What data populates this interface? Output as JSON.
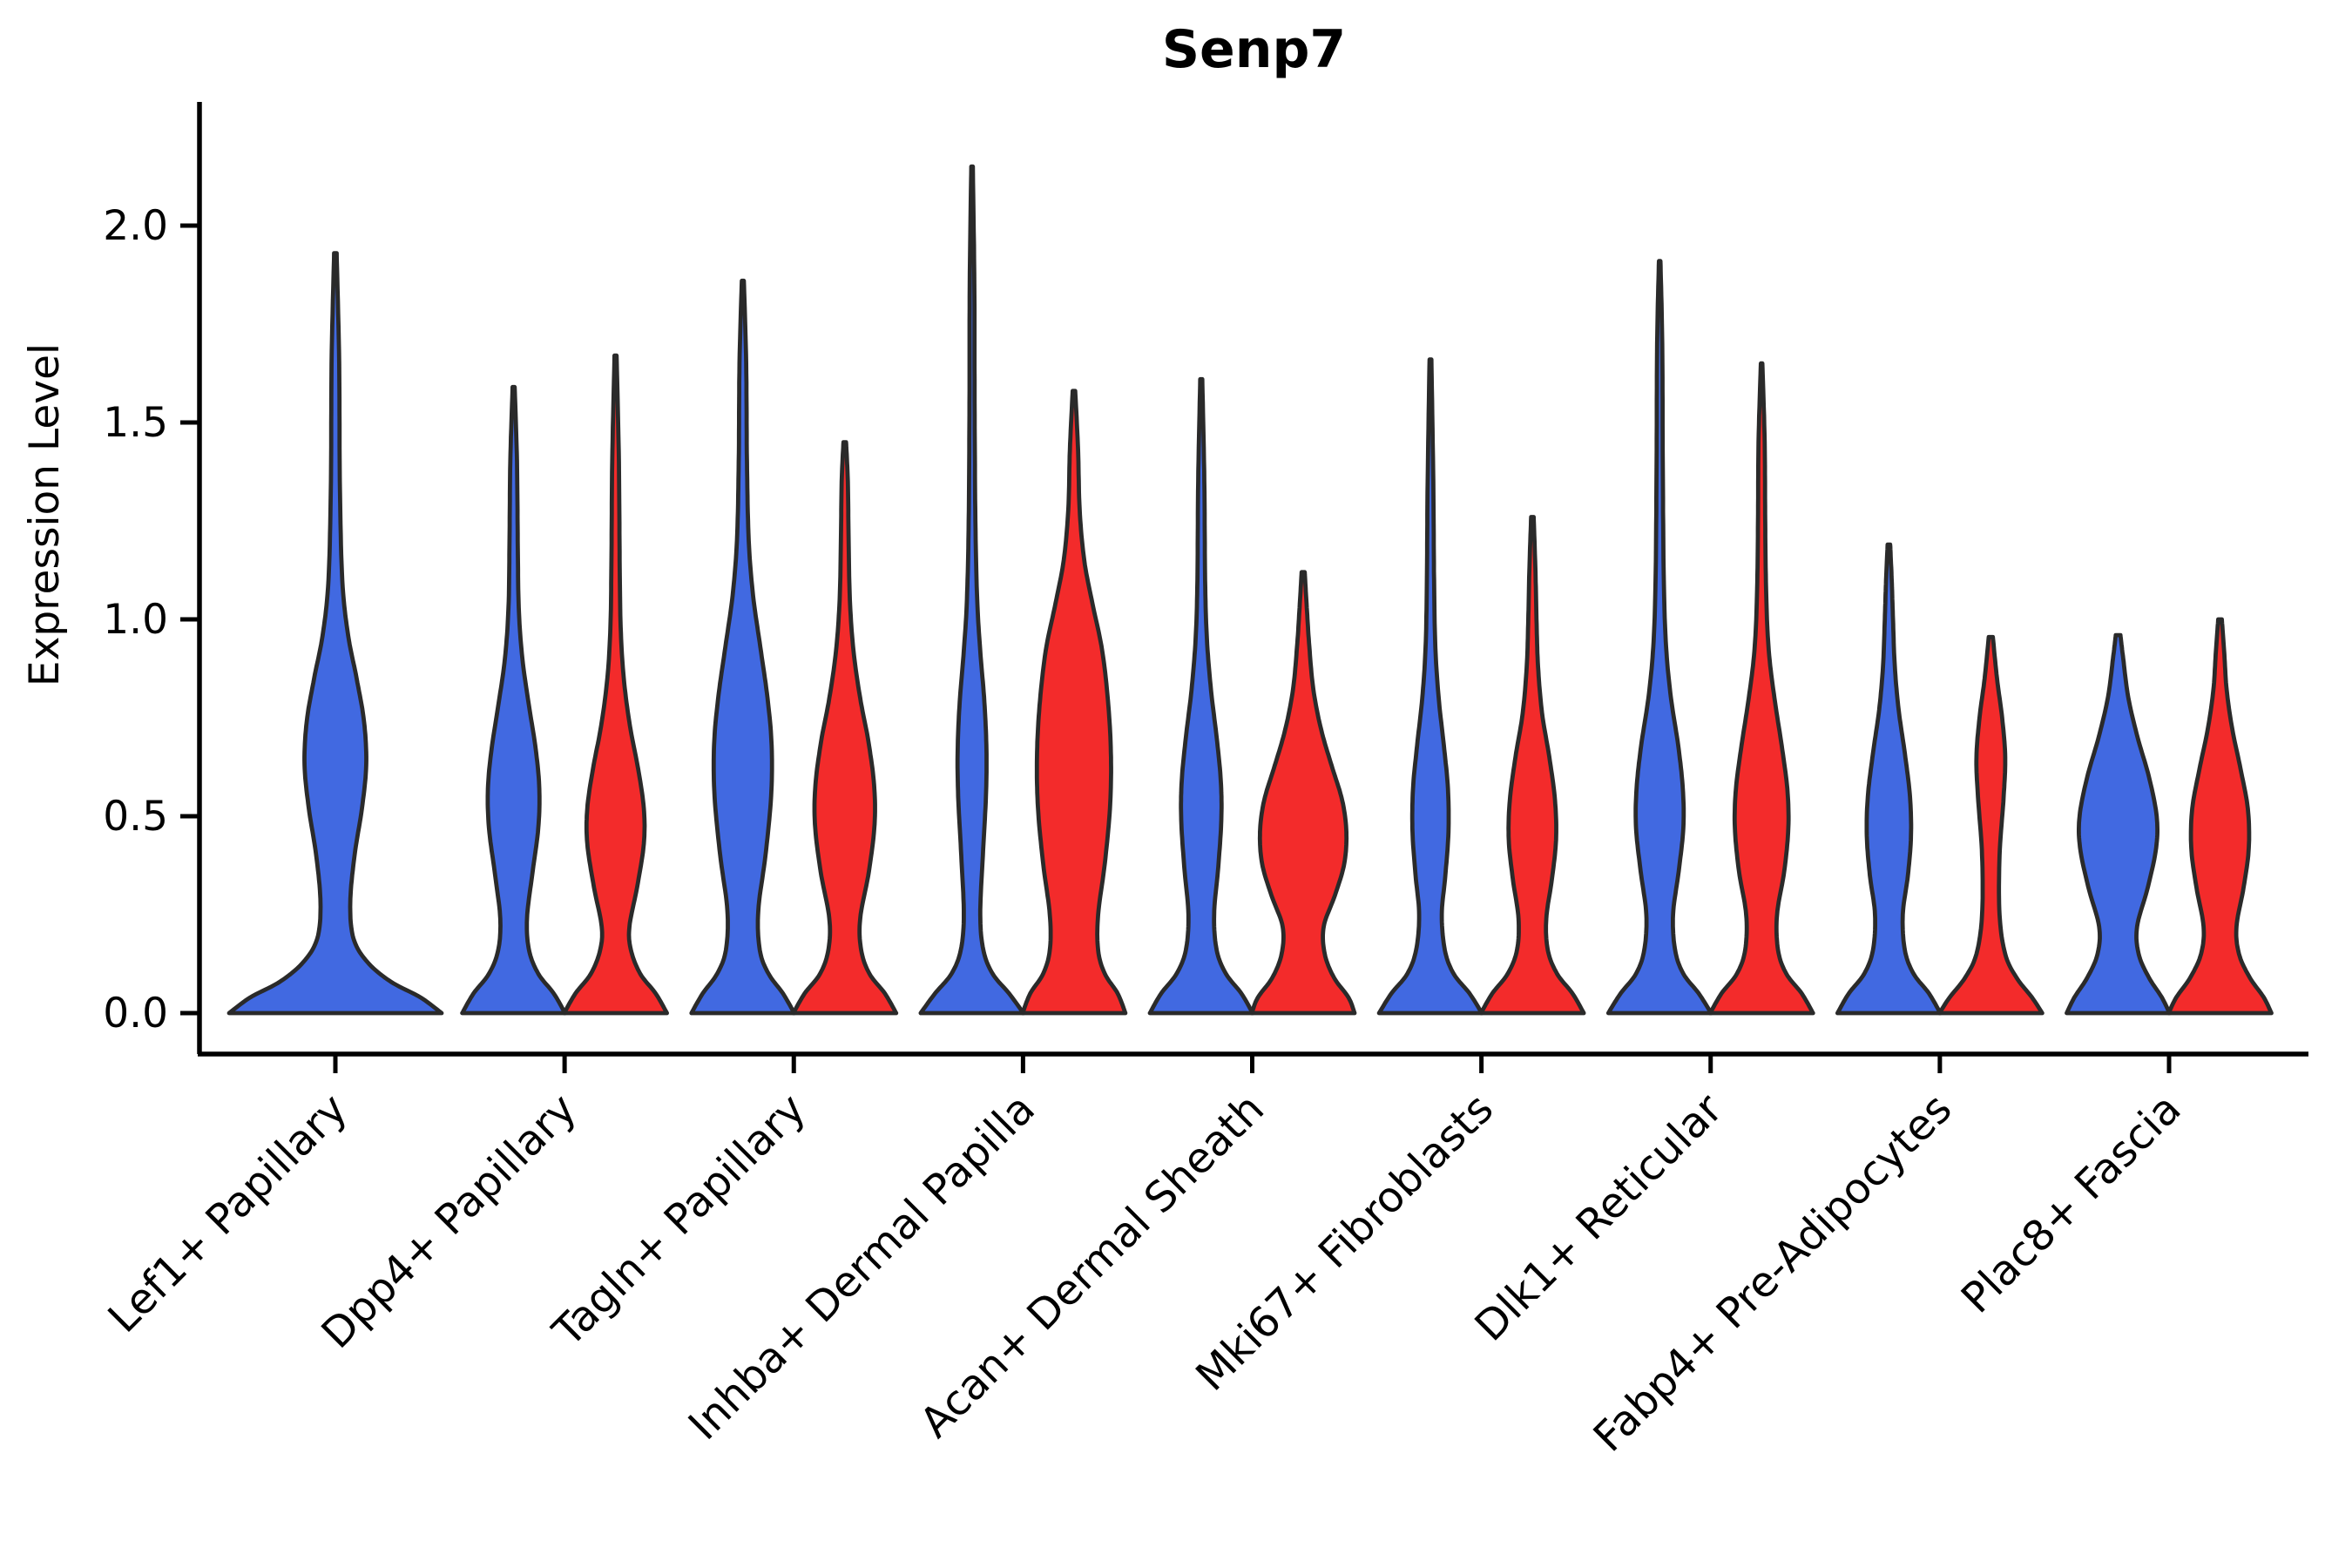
{
  "chart_data": {
    "type": "violin",
    "title": "Senp7",
    "ylabel": "Expression Level",
    "xlabel": "",
    "grid": false,
    "legend": "none",
    "ytick_labels": [
      "0.0",
      "0.5",
      "1.0",
      "1.5",
      "2.0"
    ],
    "ytick_values": [
      0.0,
      0.5,
      1.0,
      1.5,
      2.0
    ],
    "ylim": [
      -0.1,
      2.31
    ],
    "categories": [
      "Lef1+ Papillary",
      "Dpp4+ Papillary",
      "Tagln+ Papillary",
      "Inhba+ Dermal Papilla",
      "Acan+ Dermal Sheath",
      "Mki67+ Fibroblasts",
      "Dlk1+ Reticular",
      "Fabp4+ Pre-Adipocytes",
      "Plac8+ Fascia"
    ],
    "series_colors": {
      "blue": "#4169E1",
      "red": "#F32B2B"
    },
    "outline_color": "#2A2A2A",
    "violins": [
      {
        "category": "Lef1+ Papillary",
        "group": "blue",
        "placement": "center",
        "max": 1.93,
        "profile": [
          [
            0,
            1.0
          ],
          [
            0.04,
            0.8
          ],
          [
            0.08,
            0.52
          ],
          [
            0.13,
            0.3
          ],
          [
            0.19,
            0.17
          ],
          [
            0.28,
            0.14
          ],
          [
            0.4,
            0.18
          ],
          [
            0.52,
            0.25
          ],
          [
            0.63,
            0.29
          ],
          [
            0.74,
            0.27
          ],
          [
            0.85,
            0.2
          ],
          [
            0.96,
            0.12
          ],
          [
            1.1,
            0.065
          ],
          [
            1.35,
            0.042
          ],
          [
            1.65,
            0.036
          ],
          [
            1.93,
            0.012
          ]
        ]
      },
      {
        "category": "Dpp4+ Papillary",
        "group": "blue",
        "placement": "left",
        "max": 1.59,
        "profile": [
          [
            0,
            1.0
          ],
          [
            0.05,
            0.78
          ],
          [
            0.1,
            0.48
          ],
          [
            0.16,
            0.3
          ],
          [
            0.24,
            0.26
          ],
          [
            0.35,
            0.36
          ],
          [
            0.47,
            0.48
          ],
          [
            0.57,
            0.5
          ],
          [
            0.67,
            0.43
          ],
          [
            0.78,
            0.3
          ],
          [
            0.9,
            0.17
          ],
          [
            1.03,
            0.1
          ],
          [
            1.2,
            0.08
          ],
          [
            1.4,
            0.065
          ],
          [
            1.59,
            0.02
          ]
        ]
      },
      {
        "category": "Dpp4+ Papillary",
        "group": "red",
        "placement": "right",
        "max": 1.67,
        "profile": [
          [
            0,
            1.0
          ],
          [
            0.05,
            0.78
          ],
          [
            0.1,
            0.48
          ],
          [
            0.16,
            0.3
          ],
          [
            0.22,
            0.27
          ],
          [
            0.32,
            0.42
          ],
          [
            0.43,
            0.55
          ],
          [
            0.52,
            0.55
          ],
          [
            0.62,
            0.44
          ],
          [
            0.73,
            0.28
          ],
          [
            0.85,
            0.16
          ],
          [
            0.98,
            0.1
          ],
          [
            1.15,
            0.08
          ],
          [
            1.4,
            0.065
          ],
          [
            1.67,
            0.02
          ]
        ]
      },
      {
        "category": "Tagln+ Papillary",
        "group": "blue",
        "placement": "left",
        "max": 1.86,
        "profile": [
          [
            0,
            1.0
          ],
          [
            0.05,
            0.78
          ],
          [
            0.1,
            0.5
          ],
          [
            0.16,
            0.33
          ],
          [
            0.26,
            0.3
          ],
          [
            0.4,
            0.44
          ],
          [
            0.55,
            0.55
          ],
          [
            0.68,
            0.56
          ],
          [
            0.8,
            0.48
          ],
          [
            0.93,
            0.34
          ],
          [
            1.06,
            0.2
          ],
          [
            1.2,
            0.115
          ],
          [
            1.4,
            0.08
          ],
          [
            1.65,
            0.065
          ],
          [
            1.86,
            0.02
          ]
        ]
      },
      {
        "category": "Tagln+ Papillary",
        "group": "red",
        "placement": "right",
        "max": 1.45,
        "profile": [
          [
            0,
            1.0
          ],
          [
            0.05,
            0.78
          ],
          [
            0.1,
            0.48
          ],
          [
            0.16,
            0.32
          ],
          [
            0.24,
            0.3
          ],
          [
            0.36,
            0.47
          ],
          [
            0.48,
            0.58
          ],
          [
            0.58,
            0.57
          ],
          [
            0.69,
            0.46
          ],
          [
            0.8,
            0.3
          ],
          [
            0.92,
            0.17
          ],
          [
            1.05,
            0.1
          ],
          [
            1.2,
            0.075
          ],
          [
            1.35,
            0.06
          ],
          [
            1.45,
            0.025
          ]
        ]
      },
      {
        "category": "Inhba+ Dermal Papilla",
        "group": "blue",
        "placement": "left",
        "max": 2.15,
        "profile": [
          [
            0,
            1.0
          ],
          [
            0.05,
            0.72
          ],
          [
            0.1,
            0.4
          ],
          [
            0.16,
            0.22
          ],
          [
            0.25,
            0.16
          ],
          [
            0.4,
            0.21
          ],
          [
            0.55,
            0.27
          ],
          [
            0.67,
            0.28
          ],
          [
            0.79,
            0.24
          ],
          [
            0.92,
            0.16
          ],
          [
            1.05,
            0.1
          ],
          [
            1.25,
            0.065
          ],
          [
            1.55,
            0.05
          ],
          [
            1.85,
            0.045
          ],
          [
            2.15,
            0.015
          ]
        ]
      },
      {
        "category": "Inhba+ Dermal Papilla",
        "group": "red",
        "placement": "right",
        "max": 1.58,
        "profile": [
          [
            0,
            1.0
          ],
          [
            0.05,
            0.85
          ],
          [
            0.1,
            0.6
          ],
          [
            0.16,
            0.47
          ],
          [
            0.25,
            0.47
          ],
          [
            0.38,
            0.6
          ],
          [
            0.52,
            0.7
          ],
          [
            0.65,
            0.72
          ],
          [
            0.78,
            0.67
          ],
          [
            0.92,
            0.55
          ],
          [
            1.04,
            0.36
          ],
          [
            1.15,
            0.2
          ],
          [
            1.28,
            0.11
          ],
          [
            1.43,
            0.08
          ],
          [
            1.58,
            0.025
          ]
        ]
      },
      {
        "category": "Acan+ Dermal Sheath",
        "group": "blue",
        "placement": "left",
        "max": 1.61,
        "profile": [
          [
            0,
            1.0
          ],
          [
            0.05,
            0.78
          ],
          [
            0.1,
            0.48
          ],
          [
            0.16,
            0.3
          ],
          [
            0.25,
            0.25
          ],
          [
            0.37,
            0.33
          ],
          [
            0.49,
            0.39
          ],
          [
            0.59,
            0.38
          ],
          [
            0.7,
            0.3
          ],
          [
            0.82,
            0.19
          ],
          [
            0.95,
            0.11
          ],
          [
            1.1,
            0.075
          ],
          [
            1.35,
            0.06
          ],
          [
            1.61,
            0.02
          ]
        ]
      },
      {
        "category": "Acan+ Dermal Sheath",
        "group": "red",
        "placement": "right",
        "max": 1.12,
        "profile": [
          [
            0,
            1.0
          ],
          [
            0.04,
            0.88
          ],
          [
            0.09,
            0.6
          ],
          [
            0.15,
            0.42
          ],
          [
            0.22,
            0.4
          ],
          [
            0.3,
            0.62
          ],
          [
            0.38,
            0.8
          ],
          [
            0.46,
            0.84
          ],
          [
            0.54,
            0.76
          ],
          [
            0.63,
            0.55
          ],
          [
            0.72,
            0.35
          ],
          [
            0.82,
            0.2
          ],
          [
            0.93,
            0.12
          ],
          [
            1.03,
            0.07
          ],
          [
            1.12,
            0.03
          ]
        ]
      },
      {
        "category": "Mki67+ Fibroblasts",
        "group": "blue",
        "placement": "left",
        "max": 1.66,
        "profile": [
          [
            0,
            1.0
          ],
          [
            0.05,
            0.76
          ],
          [
            0.1,
            0.45
          ],
          [
            0.16,
            0.28
          ],
          [
            0.25,
            0.22
          ],
          [
            0.35,
            0.29
          ],
          [
            0.46,
            0.35
          ],
          [
            0.57,
            0.34
          ],
          [
            0.68,
            0.26
          ],
          [
            0.8,
            0.16
          ],
          [
            0.93,
            0.095
          ],
          [
            1.1,
            0.07
          ],
          [
            1.35,
            0.055
          ],
          [
            1.66,
            0.018
          ]
        ]
      },
      {
        "category": "Mki67+ Fibroblasts",
        "group": "red",
        "placement": "right",
        "max": 1.26,
        "profile": [
          [
            0,
            1.0
          ],
          [
            0.05,
            0.78
          ],
          [
            0.1,
            0.48
          ],
          [
            0.16,
            0.3
          ],
          [
            0.24,
            0.27
          ],
          [
            0.34,
            0.38
          ],
          [
            0.44,
            0.46
          ],
          [
            0.54,
            0.44
          ],
          [
            0.65,
            0.33
          ],
          [
            0.76,
            0.19
          ],
          [
            0.88,
            0.11
          ],
          [
            1.0,
            0.08
          ],
          [
            1.12,
            0.06
          ],
          [
            1.26,
            0.025
          ]
        ]
      },
      {
        "category": "Dlk1+ Reticular",
        "group": "blue",
        "placement": "left",
        "max": 1.91,
        "profile": [
          [
            0,
            1.0
          ],
          [
            0.05,
            0.76
          ],
          [
            0.1,
            0.46
          ],
          [
            0.16,
            0.3
          ],
          [
            0.25,
            0.26
          ],
          [
            0.36,
            0.37
          ],
          [
            0.47,
            0.46
          ],
          [
            0.57,
            0.45
          ],
          [
            0.68,
            0.36
          ],
          [
            0.8,
            0.22
          ],
          [
            0.93,
            0.125
          ],
          [
            1.1,
            0.08
          ],
          [
            1.4,
            0.06
          ],
          [
            1.7,
            0.05
          ],
          [
            1.91,
            0.015
          ]
        ]
      },
      {
        "category": "Dlk1+ Reticular",
        "group": "red",
        "placement": "right",
        "max": 1.65,
        "profile": [
          [
            0,
            1.0
          ],
          [
            0.05,
            0.78
          ],
          [
            0.1,
            0.48
          ],
          [
            0.16,
            0.32
          ],
          [
            0.25,
            0.3
          ],
          [
            0.36,
            0.44
          ],
          [
            0.47,
            0.52
          ],
          [
            0.57,
            0.5
          ],
          [
            0.68,
            0.39
          ],
          [
            0.8,
            0.25
          ],
          [
            0.92,
            0.14
          ],
          [
            1.06,
            0.09
          ],
          [
            1.25,
            0.07
          ],
          [
            1.45,
            0.06
          ],
          [
            1.65,
            0.015
          ]
        ]
      },
      {
        "category": "Fabp4+ Pre-Adipocytes",
        "group": "blue",
        "placement": "left",
        "max": 1.19,
        "profile": [
          [
            0,
            1.0
          ],
          [
            0.05,
            0.78
          ],
          [
            0.1,
            0.48
          ],
          [
            0.16,
            0.31
          ],
          [
            0.25,
            0.27
          ],
          [
            0.35,
            0.37
          ],
          [
            0.45,
            0.43
          ],
          [
            0.55,
            0.41
          ],
          [
            0.66,
            0.31
          ],
          [
            0.77,
            0.19
          ],
          [
            0.88,
            0.115
          ],
          [
            1.0,
            0.08
          ],
          [
            1.1,
            0.055
          ],
          [
            1.19,
            0.025
          ]
        ]
      },
      {
        "category": "Fabp4+ Pre-Adipocytes",
        "group": "red",
        "placement": "right",
        "max": 0.955,
        "profile": [
          [
            0,
            1.0
          ],
          [
            0.04,
            0.8
          ],
          [
            0.09,
            0.5
          ],
          [
            0.15,
            0.28
          ],
          [
            0.25,
            0.17
          ],
          [
            0.4,
            0.17
          ],
          [
            0.55,
            0.25
          ],
          [
            0.65,
            0.28
          ],
          [
            0.75,
            0.22
          ],
          [
            0.85,
            0.12
          ],
          [
            0.955,
            0.04
          ]
        ]
      },
      {
        "category": "Plac8+ Fascia",
        "group": "blue",
        "placement": "left",
        "max": 0.96,
        "profile": [
          [
            0,
            1.0
          ],
          [
            0.04,
            0.85
          ],
          [
            0.09,
            0.6
          ],
          [
            0.15,
            0.4
          ],
          [
            0.22,
            0.37
          ],
          [
            0.32,
            0.58
          ],
          [
            0.42,
            0.74
          ],
          [
            0.5,
            0.75
          ],
          [
            0.6,
            0.6
          ],
          [
            0.7,
            0.38
          ],
          [
            0.8,
            0.2
          ],
          [
            0.9,
            0.1
          ],
          [
            0.96,
            0.045
          ]
        ]
      },
      {
        "category": "Plac8+ Fascia",
        "group": "red",
        "placement": "right",
        "max": 1.0,
        "profile": [
          [
            0,
            1.0
          ],
          [
            0.04,
            0.85
          ],
          [
            0.09,
            0.58
          ],
          [
            0.15,
            0.37
          ],
          [
            0.22,
            0.32
          ],
          [
            0.32,
            0.46
          ],
          [
            0.42,
            0.56
          ],
          [
            0.52,
            0.54
          ],
          [
            0.62,
            0.4
          ],
          [
            0.72,
            0.24
          ],
          [
            0.82,
            0.13
          ],
          [
            0.92,
            0.08
          ],
          [
            1.0,
            0.035
          ]
        ]
      }
    ]
  }
}
